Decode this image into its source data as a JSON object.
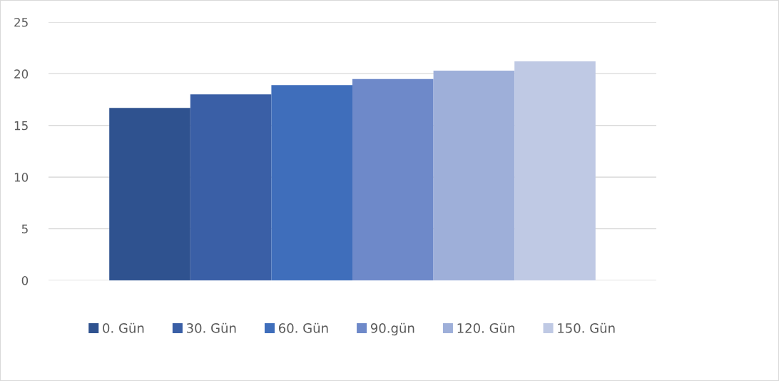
{
  "chart_data": {
    "type": "bar",
    "categories": [
      null
    ],
    "series": [
      {
        "name": "0. Gün",
        "color": "#2f528f",
        "values": [
          16.7
        ]
      },
      {
        "name": "30. Gün",
        "color": "#3a5fa6",
        "values": [
          18.0
        ]
      },
      {
        "name": "60. Gün",
        "color": "#3f6ebb",
        "values": [
          18.9
        ]
      },
      {
        "name": "90.gün",
        "color": "#6e89c9",
        "values": [
          19.5
        ]
      },
      {
        "name": "120. Gün",
        "color": "#9eafd9",
        "values": [
          20.3
        ]
      },
      {
        "name": "150. Gün",
        "color": "#bfc9e4",
        "values": [
          21.2
        ]
      }
    ],
    "ylim": [
      0,
      25
    ],
    "yticks": [
      0,
      5,
      10,
      15,
      20,
      25
    ],
    "grid": "y",
    "legend": "bottom",
    "tick_labels": "y"
  }
}
